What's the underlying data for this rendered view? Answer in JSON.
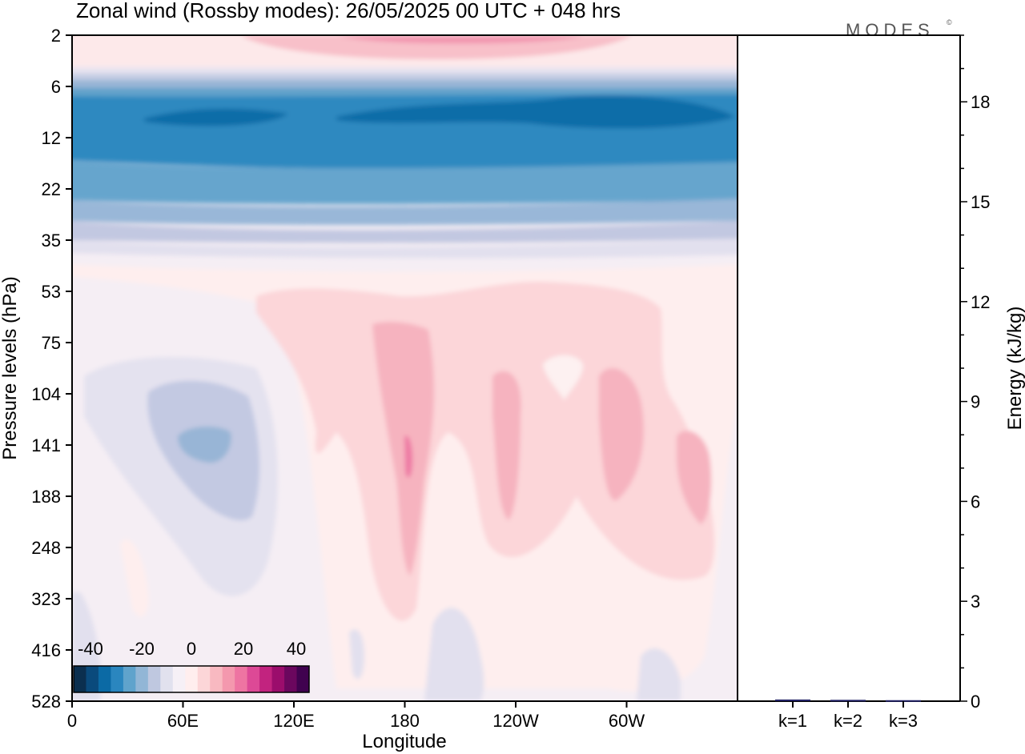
{
  "title": "Zonal wind (Rossby modes):  26/05/2025  00 UTC  + 048 hrs",
  "logo": {
    "text": "MODES",
    "mark": "©"
  },
  "colorbar": {
    "ticks": [
      "-40",
      "-20",
      "0",
      "20",
      "40"
    ],
    "colors": [
      "#0b2f4f",
      "#0a4a7c",
      "#0b6aa5",
      "#2a86bf",
      "#5fa3cc",
      "#92b6d6",
      "#bfc8e0",
      "#e1e1ee",
      "#f6f0f6",
      "#ffeeee",
      "#fcd6d8",
      "#f8b9c1",
      "#f498ae",
      "#ee74a2",
      "#dd4996",
      "#c2237f",
      "#9b0d6c",
      "#6b075e",
      "#40024f"
    ]
  },
  "chart_data": [
    {
      "type": "heatmap",
      "title": "Zonal wind (Rossby modes):  26/05/2025  00 UTC  + 048 hrs",
      "xlabel": "Longitude",
      "ylabel": "Pressure levels (hPa)",
      "x_ticks": [
        "0",
        "60E",
        "120E",
        "180",
        "120W",
        "60W"
      ],
      "y_ticks": [
        "2",
        "6",
        "12",
        "22",
        "35",
        "53",
        "75",
        "104",
        "141",
        "188",
        "248",
        "323",
        "416",
        "528"
      ],
      "y_scale": "log (reversed)",
      "value_units": "m/s",
      "value_range": [
        -40,
        40
      ],
      "features": [
        {
          "name": "upper easterly jet",
          "level_range_hPa": [
            6,
            35
          ],
          "max_value": -35
        },
        {
          "name": "stratopause westerlies",
          "level_range_hPa": [
            2,
            5
          ],
          "max_value": 20
        },
        {
          "name": "easterly cell near 70E",
          "level_range_hPa": [
            90,
            330
          ],
          "max_value": -20
        },
        {
          "name": "westerly cells 150E-70W",
          "level_range_hPa": [
            55,
            380
          ],
          "max_value": 20
        }
      ]
    },
    {
      "type": "bar",
      "ylabel": "Energy (kJ/kg)",
      "categories": [
        "k=1",
        "k=2",
        "k=3"
      ],
      "values": [
        0.05,
        0.04,
        0.03
      ],
      "y_ticks": [
        "0",
        "3",
        "6",
        "9",
        "12",
        "15",
        "18"
      ],
      "ylim": [
        0,
        20
      ]
    }
  ]
}
